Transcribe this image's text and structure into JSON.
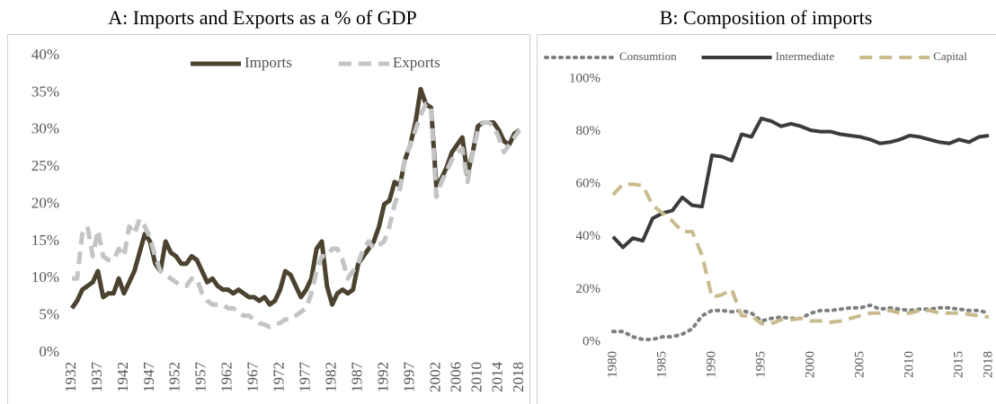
{
  "chart_data": [
    {
      "type": "line",
      "title": "A: Imports and Exports as a % of GDP",
      "legend": "top",
      "x": [
        1932,
        1933,
        1934,
        1935,
        1936,
        1937,
        1938,
        1939,
        1940,
        1941,
        1942,
        1943,
        1944,
        1945,
        1946,
        1947,
        1948,
        1949,
        1950,
        1951,
        1952,
        1953,
        1954,
        1955,
        1956,
        1957,
        1958,
        1959,
        1960,
        1961,
        1962,
        1963,
        1964,
        1965,
        1966,
        1967,
        1968,
        1969,
        1970,
        1971,
        1972,
        1973,
        1974,
        1975,
        1976,
        1977,
        1978,
        1979,
        1980,
        1981,
        1982,
        1983,
        1984,
        1985,
        1986,
        1987,
        1988,
        1989,
        1990,
        1991,
        1992,
        1993,
        1994,
        1995,
        1996,
        1997,
        1998,
        1999,
        2000,
        2001,
        2002,
        2003,
        2004,
        2005,
        2006,
        2007,
        2008,
        2009,
        2010,
        2011,
        2012,
        2013,
        2014,
        2015,
        2016,
        2017,
        2018
      ],
      "xlim": [
        1932,
        2018
      ],
      "xticks": [
        1932,
        1937,
        1942,
        1947,
        1952,
        1957,
        1962,
        1967,
        1972,
        1977,
        1982,
        1987,
        1992,
        1997,
        2002,
        2006,
        2010,
        2014,
        2018
      ],
      "ylim": [
        0,
        40
      ],
      "yticks": [
        {
          "value": 0,
          "label": "0%"
        },
        {
          "value": 5,
          "label": "5%"
        },
        {
          "value": 10,
          "label": "10%"
        },
        {
          "value": 15,
          "label": "15%"
        },
        {
          "value": 20,
          "label": "20%"
        },
        {
          "value": 25,
          "label": "25%"
        },
        {
          "value": 30,
          "label": "30%"
        },
        {
          "value": 35,
          "label": "35%"
        },
        {
          "value": 40,
          "label": "40%"
        }
      ],
      "series": [
        {
          "name": "Imports",
          "color": "#4b4330",
          "dash": "solid",
          "values": [
            6,
            7,
            8.5,
            9,
            9.5,
            11,
            7.5,
            8,
            8,
            10,
            8,
            9.5,
            11,
            13.5,
            16,
            15,
            12,
            11,
            15,
            13.5,
            13,
            12,
            12,
            13,
            12.5,
            11,
            9.5,
            10,
            9,
            8.5,
            8.5,
            8,
            8.5,
            8,
            7.5,
            7.5,
            7,
            7.5,
            6.5,
            7,
            8.5,
            11,
            10.5,
            9,
            7.5,
            8.5,
            10,
            14,
            15,
            9,
            6.5,
            8,
            8.5,
            8,
            8.5,
            12,
            13,
            14,
            15,
            17,
            20,
            20.5,
            23,
            22.5,
            26,
            28,
            31,
            35.5,
            33.5,
            33,
            22.5,
            23.5,
            25,
            27,
            28,
            29,
            24,
            27,
            30.5,
            31,
            31,
            31,
            30,
            28.5,
            28,
            29.5,
            30
          ]
        },
        {
          "name": "Exports",
          "color": "#c4c4c4",
          "dash": "dashed",
          "values": [
            10,
            10,
            16,
            17,
            13,
            16.5,
            13,
            12.5,
            12.5,
            14,
            13,
            17,
            16,
            18,
            17,
            15.5,
            13,
            11,
            10.5,
            10,
            9.5,
            9,
            9,
            10,
            10,
            8,
            7,
            6.5,
            6.5,
            6.5,
            6,
            6,
            5.5,
            5,
            5,
            4.5,
            4,
            3.8,
            3.5,
            3.8,
            4,
            4.5,
            4.5,
            5,
            5.5,
            6,
            8,
            11,
            13,
            13,
            14,
            14,
            12.5,
            10,
            11,
            12,
            14,
            15,
            14,
            14.5,
            15,
            17,
            20,
            22,
            26,
            28,
            30,
            32,
            33.5,
            33,
            21,
            23,
            24.5,
            26,
            27,
            27.5,
            23,
            27,
            30,
            31,
            31,
            30.5,
            29,
            27,
            28,
            29,
            30
          ]
        }
      ]
    },
    {
      "type": "line",
      "title": "B: Composition of imports",
      "legend": "top",
      "x": [
        1980,
        1981,
        1982,
        1983,
        1984,
        1985,
        1986,
        1987,
        1988,
        1989,
        1990,
        1991,
        1992,
        1993,
        1994,
        1995,
        1996,
        1997,
        1998,
        1999,
        2000,
        2001,
        2002,
        2003,
        2004,
        2005,
        2006,
        2007,
        2008,
        2009,
        2010,
        2011,
        2012,
        2013,
        2014,
        2015,
        2016,
        2017,
        2018
      ],
      "xlim": [
        1980,
        2018
      ],
      "xticks": [
        1980,
        1985,
        1990,
        1995,
        2000,
        2005,
        2010,
        2015,
        2018
      ],
      "ylim": [
        0,
        100
      ],
      "yticks": [
        {
          "value": 0,
          "label": "0%"
        },
        {
          "value": 20,
          "label": "20%"
        },
        {
          "value": 40,
          "label": "40%"
        },
        {
          "value": 60,
          "label": "60%"
        },
        {
          "value": 80,
          "label": "80%"
        },
        {
          "value": 100,
          "label": "100%"
        }
      ],
      "series": [
        {
          "name": "Consumtion",
          "color": "#7f7f7f",
          "dash": "dotted",
          "values": [
            4,
            4,
            2,
            1,
            1,
            2,
            2,
            3,
            5,
            10,
            12,
            12,
            11.5,
            12,
            11,
            8,
            9,
            9.5,
            9,
            9,
            11,
            12,
            12,
            12.5,
            13,
            13,
            14,
            12.5,
            13,
            12.5,
            12,
            12.5,
            12.5,
            13,
            13,
            12.5,
            12,
            12,
            11
          ]
        },
        {
          "name": "Intermediate",
          "color": "#3b3b3b",
          "dash": "solid",
          "values": [
            40,
            36,
            39.5,
            38.5,
            47,
            49,
            50,
            55,
            52,
            51.5,
            71,
            70.5,
            69,
            79,
            78,
            85,
            84,
            82,
            83,
            82,
            80.5,
            80,
            80,
            79,
            78.5,
            78,
            77,
            75.5,
            76,
            77,
            78.5,
            78,
            77,
            76,
            75.5,
            77,
            76,
            78,
            78.5
          ]
        },
        {
          "name": "Capital",
          "color": "#c9bb8c",
          "dash": "dashed",
          "values": [
            56,
            60,
            60,
            59.5,
            52,
            49,
            46,
            42,
            42,
            33,
            17,
            18,
            20,
            10,
            10,
            7,
            7,
            8.5,
            8.5,
            9,
            8,
            8,
            7.5,
            8,
            9,
            10,
            11,
            11,
            12,
            11,
            11,
            12,
            12,
            11,
            11,
            11,
            10.5,
            10,
            9.5
          ]
        }
      ]
    }
  ]
}
